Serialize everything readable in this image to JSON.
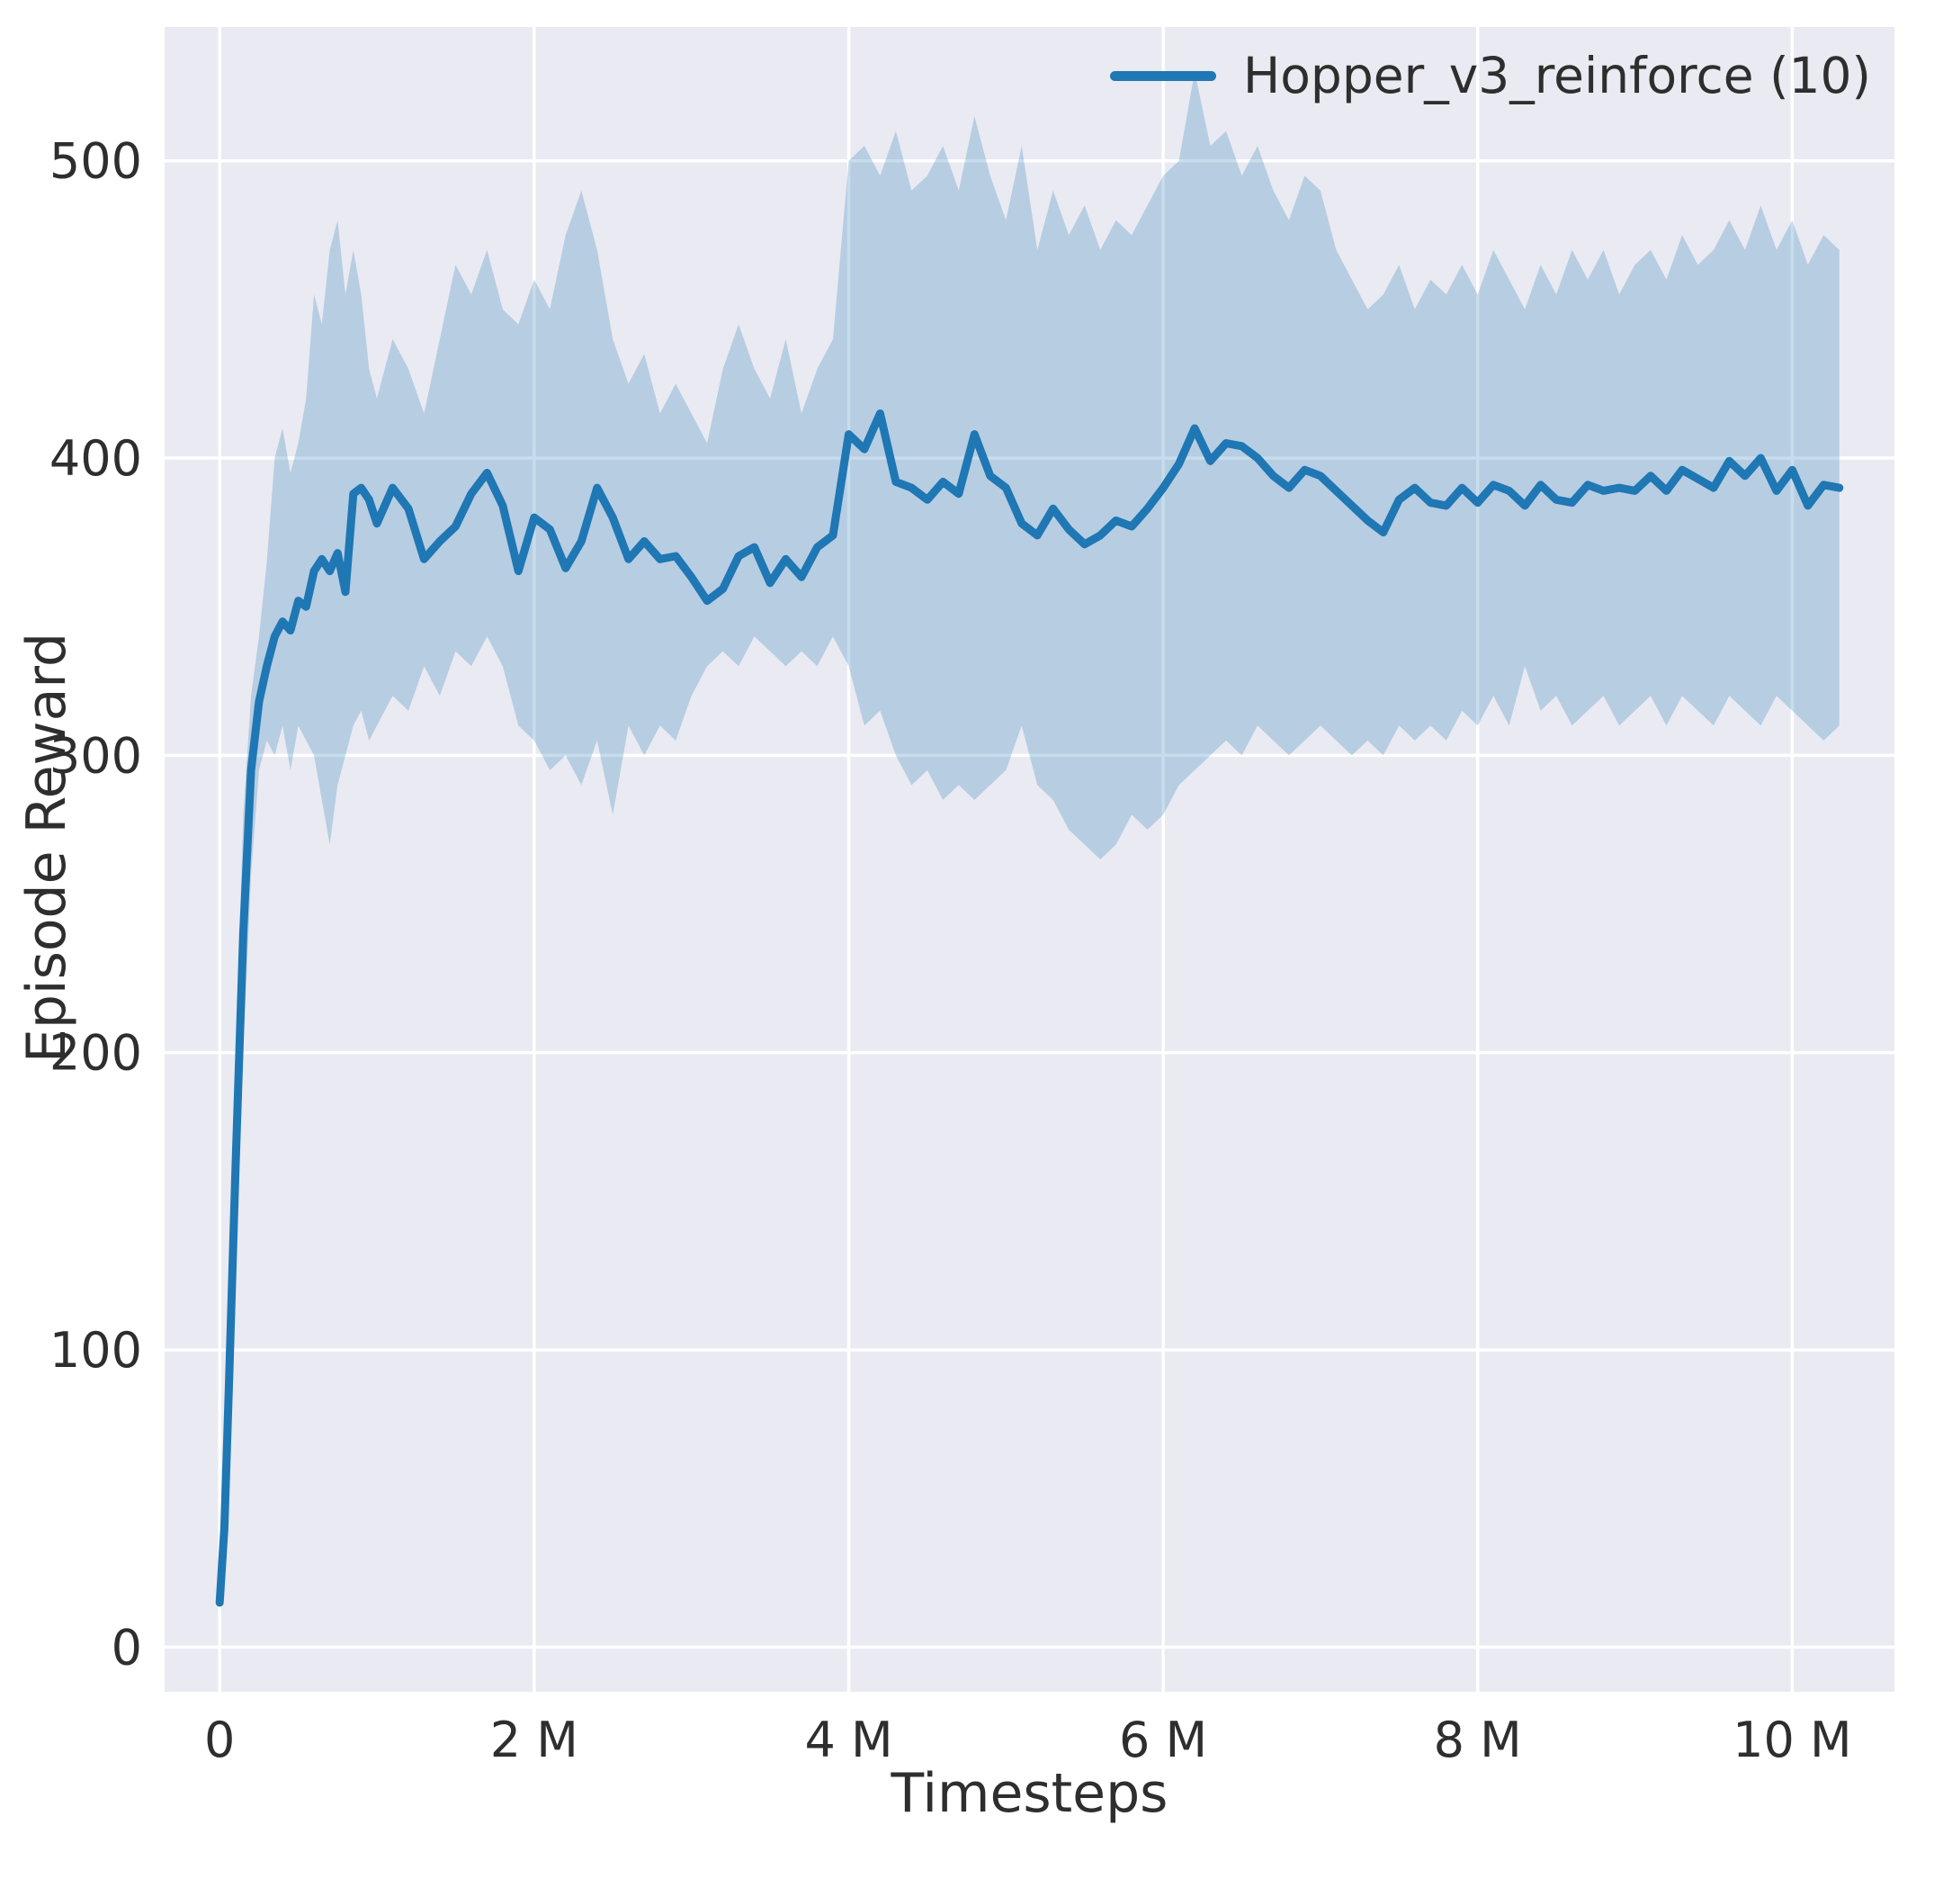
{
  "figure": {
    "background": "#ffffff",
    "panel_background": "#eaeaf2",
    "grid_color": "#ffffff",
    "line_color": "#1f77b4",
    "band_color": "#1f77b4",
    "band_opacity": 0.25,
    "text_color": "#2e2e2e"
  },
  "chart_data": {
    "type": "line",
    "title": "",
    "xlabel": "Timesteps",
    "ylabel": "Episode Reward",
    "grid": true,
    "legend_position": "upper right",
    "legend": [
      {
        "label": "Hopper_v3_reinforce (10)",
        "color": "#1f77b4"
      }
    ],
    "x_unit": "millions of timesteps",
    "xlim": [
      -0.35,
      10.65
    ],
    "ylim": [
      -15,
      545
    ],
    "xticks": [
      {
        "value": 0,
        "label": "0"
      },
      {
        "value": 2,
        "label": "2 M"
      },
      {
        "value": 4,
        "label": "4 M"
      },
      {
        "value": 6,
        "label": "6 M"
      },
      {
        "value": 8,
        "label": "8 M"
      },
      {
        "value": 10,
        "label": "10 M"
      }
    ],
    "yticks": [
      {
        "value": 0,
        "label": "0"
      },
      {
        "value": 100,
        "label": "100"
      },
      {
        "value": 200,
        "label": "200"
      },
      {
        "value": 300,
        "label": "300"
      },
      {
        "value": 400,
        "label": "400"
      },
      {
        "value": 500,
        "label": "500"
      }
    ],
    "series": [
      {
        "name": "Hopper_v3_reinforce (10)",
        "point_format": [
          "x_millions",
          "band_lower",
          "mean",
          "band_upper"
        ],
        "points": [
          [
            0,
            12,
            15,
            20
          ],
          [
            0.03,
            30,
            40,
            55
          ],
          [
            0.06,
            70,
            90,
            115
          ],
          [
            0.1,
            130,
            160,
            195
          ],
          [
            0.15,
            200,
            240,
            280
          ],
          [
            0.2,
            260,
            295,
            320
          ],
          [
            0.25,
            295,
            318,
            340
          ],
          [
            0.3,
            305,
            330,
            365
          ],
          [
            0.35,
            300,
            340,
            400
          ],
          [
            0.4,
            310,
            345,
            410
          ],
          [
            0.45,
            295,
            342,
            395
          ],
          [
            0.5,
            310,
            352,
            405
          ],
          [
            0.55,
            305,
            350,
            420
          ],
          [
            0.6,
            300,
            362,
            455
          ],
          [
            0.65,
            285,
            366,
            445
          ],
          [
            0.7,
            270,
            362,
            470
          ],
          [
            0.75,
            290,
            368,
            480
          ],
          [
            0.8,
            300,
            355,
            455
          ],
          [
            0.85,
            310,
            388,
            470
          ],
          [
            0.9,
            315,
            390,
            455
          ],
          [
            0.95,
            305,
            386,
            430
          ],
          [
            1.0,
            310,
            378,
            420
          ],
          [
            1.1,
            320,
            390,
            440
          ],
          [
            1.2,
            315,
            383,
            430
          ],
          [
            1.3,
            330,
            366,
            415
          ],
          [
            1.4,
            320,
            372,
            440
          ],
          [
            1.5,
            335,
            377,
            465
          ],
          [
            1.6,
            330,
            388,
            455
          ],
          [
            1.7,
            340,
            395,
            470
          ],
          [
            1.8,
            330,
            384,
            450
          ],
          [
            1.9,
            310,
            362,
            445
          ],
          [
            2.0,
            305,
            380,
            460
          ],
          [
            2.1,
            295,
            376,
            450
          ],
          [
            2.2,
            300,
            363,
            475
          ],
          [
            2.3,
            290,
            372,
            490
          ],
          [
            2.4,
            305,
            390,
            470
          ],
          [
            2.5,
            280,
            380,
            440
          ],
          [
            2.6,
            310,
            366,
            425
          ],
          [
            2.7,
            300,
            372,
            435
          ],
          [
            2.8,
            310,
            366,
            415
          ],
          [
            2.9,
            305,
            367,
            425
          ],
          [
            3.0,
            320,
            360,
            415
          ],
          [
            3.1,
            330,
            352,
            405
          ],
          [
            3.2,
            335,
            356,
            430
          ],
          [
            3.3,
            330,
            367,
            445
          ],
          [
            3.4,
            340,
            370,
            430
          ],
          [
            3.5,
            335,
            358,
            420
          ],
          [
            3.6,
            330,
            366,
            440
          ],
          [
            3.7,
            335,
            360,
            415
          ],
          [
            3.8,
            330,
            370,
            430
          ],
          [
            3.9,
            340,
            374,
            440
          ],
          [
            4.0,
            330,
            408,
            500
          ],
          [
            4.1,
            310,
            403,
            505
          ],
          [
            4.2,
            315,
            415,
            495
          ],
          [
            4.3,
            300,
            392,
            510
          ],
          [
            4.4,
            290,
            390,
            490
          ],
          [
            4.5,
            295,
            386,
            495
          ],
          [
            4.6,
            285,
            392,
            505
          ],
          [
            4.7,
            290,
            388,
            490
          ],
          [
            4.8,
            285,
            408,
            515
          ],
          [
            4.9,
            290,
            394,
            495
          ],
          [
            5.0,
            295,
            390,
            480
          ],
          [
            5.1,
            310,
            378,
            505
          ],
          [
            5.2,
            290,
            374,
            470
          ],
          [
            5.3,
            285,
            383,
            490
          ],
          [
            5.4,
            275,
            376,
            475
          ],
          [
            5.5,
            270,
            371,
            485
          ],
          [
            5.6,
            265,
            374,
            470
          ],
          [
            5.7,
            270,
            379,
            480
          ],
          [
            5.8,
            280,
            377,
            475
          ],
          [
            5.9,
            275,
            383,
            485
          ],
          [
            6.0,
            280,
            390,
            495
          ],
          [
            6.1,
            290,
            398,
            500
          ],
          [
            6.2,
            295,
            410,
            530
          ],
          [
            6.3,
            300,
            399,
            505
          ],
          [
            6.4,
            305,
            405,
            510
          ],
          [
            6.5,
            300,
            404,
            495
          ],
          [
            6.6,
            310,
            400,
            505
          ],
          [
            6.7,
            305,
            394,
            490
          ],
          [
            6.8,
            300,
            390,
            480
          ],
          [
            6.9,
            305,
            396,
            495
          ],
          [
            7.0,
            310,
            394,
            490
          ],
          [
            7.1,
            305,
            389,
            470
          ],
          [
            7.2,
            300,
            384,
            460
          ],
          [
            7.3,
            305,
            379,
            450
          ],
          [
            7.4,
            300,
            375,
            455
          ],
          [
            7.5,
            310,
            386,
            465
          ],
          [
            7.6,
            305,
            390,
            450
          ],
          [
            7.7,
            310,
            385,
            460
          ],
          [
            7.8,
            305,
            384,
            455
          ],
          [
            7.9,
            315,
            390,
            465
          ],
          [
            8.0,
            310,
            385,
            455
          ],
          [
            8.1,
            320,
            391,
            470
          ],
          [
            8.2,
            310,
            389,
            460
          ],
          [
            8.3,
            330,
            384,
            450
          ],
          [
            8.4,
            315,
            391,
            465
          ],
          [
            8.5,
            320,
            386,
            455
          ],
          [
            8.6,
            310,
            385,
            470
          ],
          [
            8.7,
            315,
            391,
            460
          ],
          [
            8.8,
            320,
            389,
            470
          ],
          [
            8.9,
            310,
            390,
            455
          ],
          [
            9.0,
            315,
            389,
            465
          ],
          [
            9.1,
            320,
            394,
            470
          ],
          [
            9.2,
            310,
            389,
            460
          ],
          [
            9.3,
            320,
            396,
            475
          ],
          [
            9.4,
            315,
            393,
            465
          ],
          [
            9.5,
            310,
            390,
            470
          ],
          [
            9.6,
            320,
            399,
            480
          ],
          [
            9.7,
            315,
            394,
            470
          ],
          [
            9.8,
            310,
            400,
            485
          ],
          [
            9.9,
            320,
            389,
            470
          ],
          [
            10.0,
            315,
            396,
            480
          ],
          [
            10.1,
            310,
            384,
            465
          ],
          [
            10.2,
            305,
            391,
            475
          ],
          [
            10.3,
            310,
            390,
            470
          ]
        ]
      }
    ]
  }
}
